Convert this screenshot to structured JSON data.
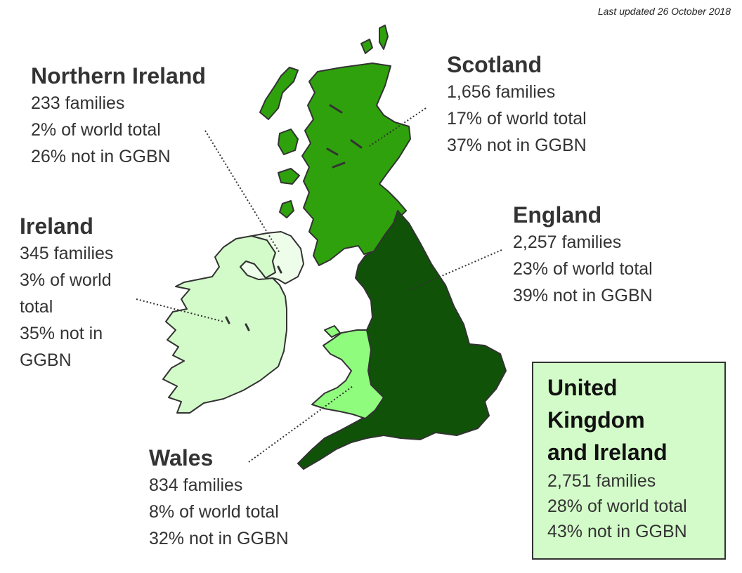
{
  "last_updated": "Last updated 26 October 2018",
  "colors": {
    "scotland": "#2fa10c",
    "england": "#0f5208",
    "wales": "#8ffc7d",
    "northern_ireland": "#eefdea",
    "ireland": "#d3fbc9",
    "outline": "#333333",
    "summary_box": "#d3fbc9"
  },
  "regions": {
    "northern_ireland": {
      "name": "Northern Ireland",
      "families": "233 families",
      "share": "2% of world total",
      "not_in": "26% not in GGBN"
    },
    "scotland": {
      "name": "Scotland",
      "families": "1,656 families",
      "share": "17% of world total",
      "not_in": "37% not in GGBN"
    },
    "ireland": {
      "name": "Ireland",
      "families": "345 families",
      "share_1": "3% of world",
      "share_2": "total",
      "not_in_1": "35% not in",
      "not_in_2": "GGBN"
    },
    "england": {
      "name": "England",
      "families": "2,257 families",
      "share": "23% of world total",
      "not_in": "39% not in GGBN"
    },
    "wales": {
      "name": "Wales",
      "families": "834 families",
      "share": "8% of world total",
      "not_in": "32% not in GGBN"
    }
  },
  "summary": {
    "name_1": "United",
    "name_2": "Kingdom",
    "name_3": "and Ireland",
    "families": "2,751 families",
    "share": "28% of world total",
    "not_in": "43% not in GGBN"
  }
}
